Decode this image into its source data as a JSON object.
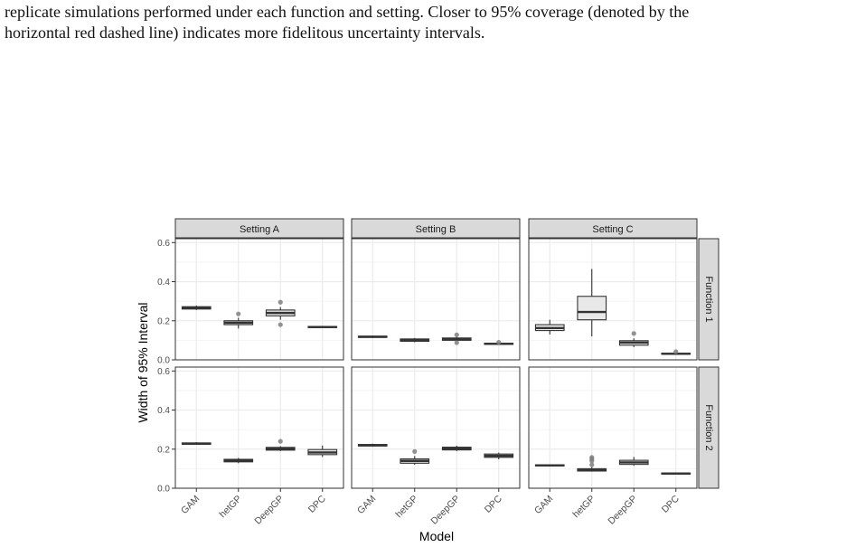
{
  "caption": {
    "line1": "replicate simulations performed under each function and setting.  Closer to 95% coverage (denoted by the",
    "line2": "horizontal red dashed line) indicates more fidelitous uncertainty intervals."
  },
  "chart_data": {
    "type": "boxplot",
    "xlabel": "Model",
    "ylabel": "Width of 95% Interval",
    "ylim": [
      0,
      0.62
    ],
    "yticks": [
      "0.0",
      "0.2",
      "0.4",
      "0.6"
    ],
    "categories": [
      "GAM",
      "hetGP",
      "DeepGP",
      "DPC"
    ],
    "columns": [
      "Setting A",
      "Setting B",
      "Setting C"
    ],
    "rows": [
      "Function 1",
      "Function 2"
    ],
    "grid": true,
    "colors": {
      "box_fill": "#e8e8e8",
      "strip_fill": "#d9d9d9",
      "grid": "#ebebeb",
      "line": "#333333",
      "outlier": "#7f7f7f"
    },
    "panels": [
      {
        "row": "Function 1",
        "col": "Setting A",
        "boxes": [
          {
            "model": "GAM",
            "min": 0.255,
            "q1": 0.26,
            "median": 0.266,
            "q3": 0.272,
            "max": 0.278,
            "outliers": []
          },
          {
            "model": "hetGP",
            "min": 0.16,
            "q1": 0.18,
            "median": 0.19,
            "q3": 0.2,
            "max": 0.215,
            "outliers": [
              0.235
            ]
          },
          {
            "model": "DeepGP",
            "min": 0.205,
            "q1": 0.225,
            "median": 0.24,
            "q3": 0.255,
            "max": 0.27,
            "outliers": [
              0.295,
              0.18
            ]
          },
          {
            "model": "DPC",
            "min": 0.162,
            "q1": 0.165,
            "median": 0.168,
            "q3": 0.171,
            "max": 0.174,
            "outliers": []
          }
        ]
      },
      {
        "row": "Function 1",
        "col": "Setting B",
        "boxes": [
          {
            "model": "GAM",
            "min": 0.112,
            "q1": 0.115,
            "median": 0.118,
            "q3": 0.121,
            "max": 0.124,
            "outliers": []
          },
          {
            "model": "hetGP",
            "min": 0.09,
            "q1": 0.095,
            "median": 0.101,
            "q3": 0.107,
            "max": 0.112,
            "outliers": []
          },
          {
            "model": "DeepGP",
            "min": 0.095,
            "q1": 0.1,
            "median": 0.106,
            "q3": 0.112,
            "max": 0.118,
            "outliers": [
              0.128,
              0.088
            ]
          },
          {
            "model": "DPC",
            "min": 0.077,
            "q1": 0.079,
            "median": 0.082,
            "q3": 0.085,
            "max": 0.087,
            "outliers": [
              0.09
            ]
          }
        ]
      },
      {
        "row": "Function 1",
        "col": "Setting C",
        "boxes": [
          {
            "model": "GAM",
            "min": 0.13,
            "q1": 0.15,
            "median": 0.163,
            "q3": 0.18,
            "max": 0.205,
            "outliers": []
          },
          {
            "model": "hetGP",
            "min": 0.12,
            "q1": 0.205,
            "median": 0.245,
            "q3": 0.325,
            "max": 0.465,
            "outliers": []
          },
          {
            "model": "DeepGP",
            "min": 0.065,
            "q1": 0.075,
            "median": 0.088,
            "q3": 0.098,
            "max": 0.11,
            "outliers": [
              0.135
            ]
          },
          {
            "model": "DPC",
            "min": 0.027,
            "q1": 0.029,
            "median": 0.031,
            "q3": 0.034,
            "max": 0.036,
            "outliers": [
              0.042
            ]
          }
        ]
      },
      {
        "row": "Function 2",
        "col": "Setting A",
        "boxes": [
          {
            "model": "GAM",
            "min": 0.222,
            "q1": 0.225,
            "median": 0.228,
            "q3": 0.232,
            "max": 0.236,
            "outliers": []
          },
          {
            "model": "hetGP",
            "min": 0.128,
            "q1": 0.135,
            "median": 0.141,
            "q3": 0.148,
            "max": 0.155,
            "outliers": []
          },
          {
            "model": "DeepGP",
            "min": 0.19,
            "q1": 0.195,
            "median": 0.202,
            "q3": 0.209,
            "max": 0.215,
            "outliers": [
              0.24
            ]
          },
          {
            "model": "DPC",
            "min": 0.16,
            "q1": 0.172,
            "median": 0.183,
            "q3": 0.198,
            "max": 0.218,
            "outliers": []
          }
        ]
      },
      {
        "row": "Function 2",
        "col": "Setting B",
        "boxes": [
          {
            "model": "GAM",
            "min": 0.212,
            "q1": 0.216,
            "median": 0.22,
            "q3": 0.224,
            "max": 0.228,
            "outliers": []
          },
          {
            "model": "hetGP",
            "min": 0.12,
            "q1": 0.128,
            "median": 0.14,
            "q3": 0.15,
            "max": 0.165,
            "outliers": [
              0.188
            ]
          },
          {
            "model": "DeepGP",
            "min": 0.19,
            "q1": 0.196,
            "median": 0.203,
            "q3": 0.21,
            "max": 0.218,
            "outliers": []
          },
          {
            "model": "DPC",
            "min": 0.148,
            "q1": 0.158,
            "median": 0.166,
            "q3": 0.175,
            "max": 0.182,
            "outliers": []
          }
        ]
      },
      {
        "row": "Function 2",
        "col": "Setting C",
        "boxes": [
          {
            "model": "GAM",
            "min": 0.112,
            "q1": 0.114,
            "median": 0.117,
            "q3": 0.12,
            "max": 0.122,
            "outliers": []
          },
          {
            "model": "hetGP",
            "min": 0.085,
            "q1": 0.088,
            "median": 0.093,
            "q3": 0.1,
            "max": 0.108,
            "outliers": [
              0.12,
              0.14,
              0.15,
              0.158
            ]
          },
          {
            "model": "DeepGP",
            "min": 0.115,
            "q1": 0.122,
            "median": 0.132,
            "q3": 0.143,
            "max": 0.16,
            "outliers": []
          },
          {
            "model": "DPC",
            "min": 0.07,
            "q1": 0.072,
            "median": 0.075,
            "q3": 0.078,
            "max": 0.08,
            "outliers": []
          }
        ]
      }
    ]
  }
}
